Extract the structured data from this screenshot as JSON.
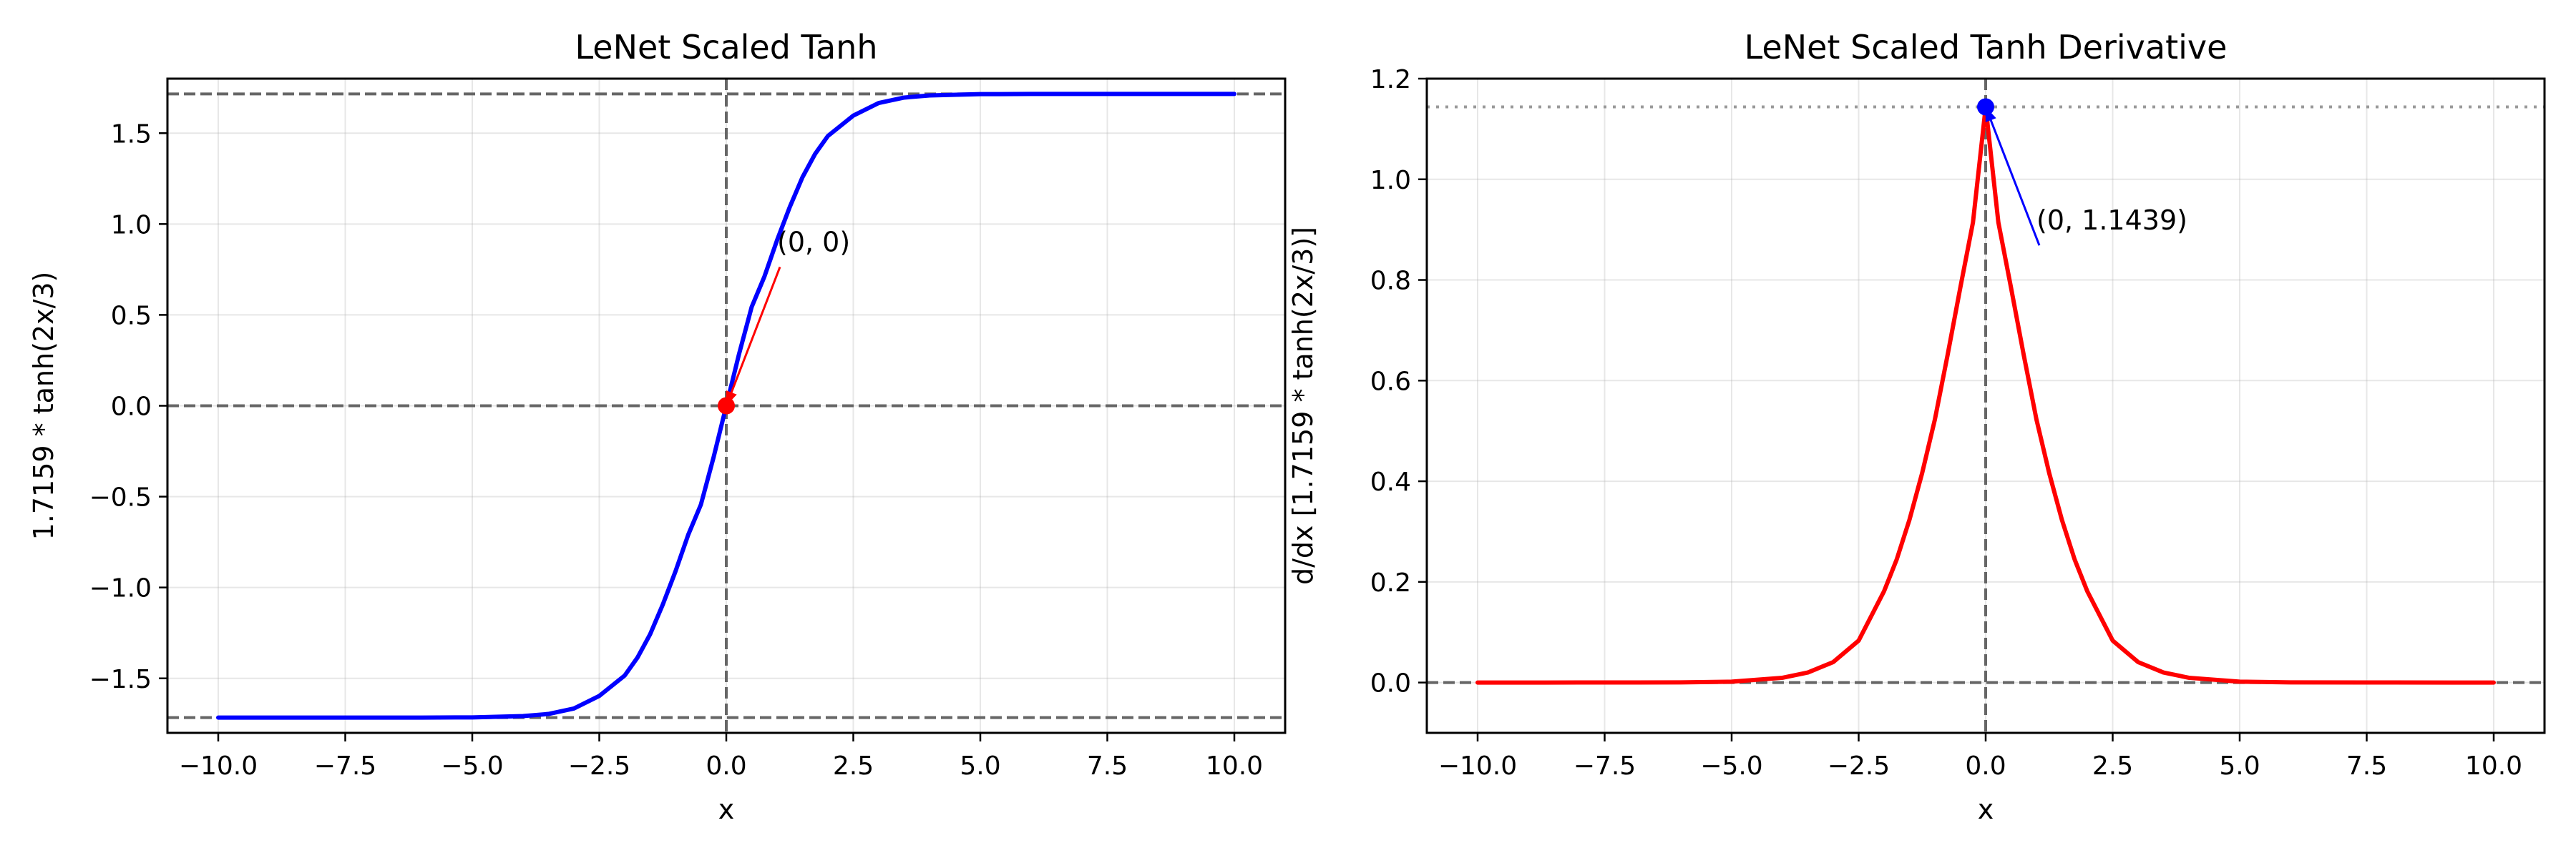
{
  "chart_data": [
    {
      "type": "line",
      "title": "LeNet Scaled Tanh",
      "xlabel": "x",
      "ylabel": "1.7159 * tanh(2x/3)",
      "xlim": [
        -11,
        11
      ],
      "ylim": [
        -1.8,
        1.8
      ],
      "x_ticks": [
        -10.0,
        -7.5,
        -5.0,
        -2.5,
        0.0,
        2.5,
        5.0,
        7.5,
        10.0
      ],
      "x_tick_labels": [
        "−10.0",
        "−7.5",
        "−5.0",
        "−2.5",
        "0.0",
        "2.5",
        "5.0",
        "7.5",
        "10.0"
      ],
      "y_ticks": [
        -1.5,
        -1.0,
        -0.5,
        0.0,
        0.5,
        1.0,
        1.5
      ],
      "y_tick_labels": [
        "−1.5",
        "−1.0",
        "−0.5",
        "0.0",
        "0.5",
        "1.0",
        "1.5"
      ],
      "grid": true,
      "series": [
        {
          "color": "#0000ff",
          "x": [
            -10,
            -8,
            -6,
            -5,
            -4,
            -3.5,
            -3,
            -2.5,
            -2,
            -1.75,
            -1.5,
            -1.25,
            -1,
            -0.75,
            -0.5,
            -0.25,
            0,
            0.25,
            0.5,
            0.75,
            1,
            1.25,
            1.5,
            1.75,
            2,
            2.5,
            3,
            3.5,
            4,
            5,
            6,
            8,
            10
          ],
          "y": [
            -1.7159,
            -1.7159,
            -1.7157,
            -1.7147,
            -1.7075,
            -1.6959,
            -1.6659,
            -1.5967,
            -1.4845,
            -1.3865,
            -1.2578,
            -1.0941,
            -0.9113,
            -0.7105,
            -0.5439,
            -0.2836,
            0,
            0.2836,
            0.5439,
            0.7105,
            0.9113,
            1.0941,
            1.2578,
            1.3865,
            1.4845,
            1.5967,
            1.6659,
            1.6959,
            1.7075,
            1.7147,
            1.7157,
            1.7159,
            1.7159
          ]
        }
      ],
      "reference_lines": [
        {
          "orientation": "horizontal",
          "value": 1.7159,
          "style": "dashed",
          "color": "#666666"
        },
        {
          "orientation": "horizontal",
          "value": -1.7159,
          "style": "dashed",
          "color": "#666666"
        },
        {
          "orientation": "horizontal",
          "value": 0,
          "style": "dashed",
          "color": "#666666"
        },
        {
          "orientation": "vertical",
          "value": 0,
          "style": "dashed",
          "color": "#666666"
        }
      ],
      "marker": {
        "x": 0,
        "y": 0,
        "color": "#ff0000"
      },
      "annotation": {
        "text": "(0, 0)",
        "point": [
          0,
          0
        ],
        "text_pos": [
          1.0,
          0.85
        ],
        "color": "#ff0000"
      }
    },
    {
      "type": "line",
      "title": "LeNet Scaled Tanh Derivative",
      "xlabel": "x",
      "ylabel": "d/dx [1.7159 * tanh(2x/3)]",
      "xlim": [
        -11,
        11
      ],
      "ylim": [
        -0.1,
        1.2
      ],
      "x_ticks": [
        -10.0,
        -7.5,
        -5.0,
        -2.5,
        0.0,
        2.5,
        5.0,
        7.5,
        10.0
      ],
      "x_tick_labels": [
        "−10.0",
        "−7.5",
        "−5.0",
        "−2.5",
        "0.0",
        "2.5",
        "5.0",
        "7.5",
        "10.0"
      ],
      "y_ticks": [
        0.0,
        0.2,
        0.4,
        0.6,
        0.8,
        1.0,
        1.2
      ],
      "y_tick_labels": [
        "0.0",
        "0.2",
        "0.4",
        "0.6",
        "0.8",
        "1.0",
        "1.2"
      ],
      "grid": true,
      "series": [
        {
          "color": "#ff0000",
          "x": [
            -10,
            -8,
            -6,
            -5,
            -4,
            -3.5,
            -3,
            -2.5,
            -2,
            -1.75,
            -1.5,
            -1.25,
            -1,
            -0.75,
            -0.5,
            -0.25,
            0,
            0.25,
            0.5,
            0.75,
            1,
            1.25,
            1.5,
            1.75,
            2,
            2.5,
            3,
            3.5,
            4,
            5,
            6,
            8,
            10
          ],
          "y": [
            0,
            0.0001,
            0.0003,
            0.0018,
            0.0095,
            0.02,
            0.0407,
            0.0834,
            0.1815,
            0.2449,
            0.3235,
            0.4164,
            0.5226,
            0.6505,
            0.7842,
            0.9144,
            1.1439,
            0.9144,
            0.7842,
            0.6505,
            0.5226,
            0.4164,
            0.3235,
            0.2449,
            0.1815,
            0.0834,
            0.0407,
            0.02,
            0.0095,
            0.0018,
            0.0003,
            0.0001,
            0
          ]
        }
      ],
      "reference_lines": [
        {
          "orientation": "horizontal",
          "value": 1.1439,
          "style": "dotted",
          "color": "#999999"
        },
        {
          "orientation": "horizontal",
          "value": 0,
          "style": "dashed",
          "color": "#666666"
        },
        {
          "orientation": "vertical",
          "value": 0,
          "style": "dashed",
          "color": "#666666"
        }
      ],
      "marker": {
        "x": 0,
        "y": 1.1439,
        "color": "#0000ff"
      },
      "annotation": {
        "text": "(0, 1.1439)",
        "point": [
          0,
          1.1439
        ],
        "text_pos": [
          1.0,
          0.9
        ],
        "color": "#0000ff"
      }
    }
  ]
}
